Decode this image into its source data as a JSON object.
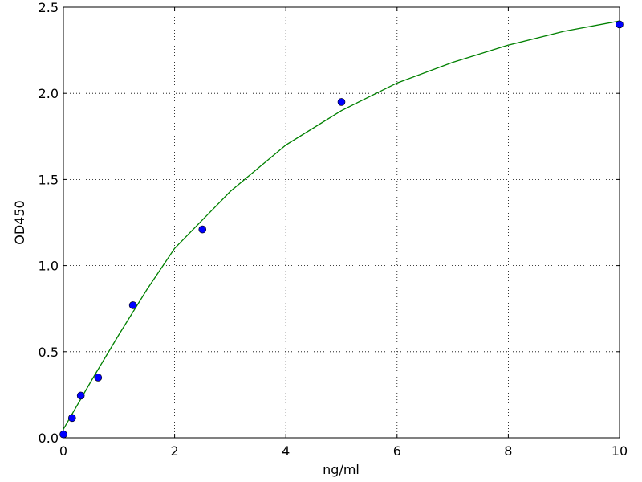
{
  "chart_data": {
    "type": "scatter",
    "xlabel": "ng/ml",
    "ylabel": "OD450",
    "xlim": [
      0,
      10
    ],
    "ylim": [
      0,
      2.5
    ],
    "xticks": [
      0,
      2,
      4,
      6,
      8,
      10
    ],
    "yticks": [
      {
        "value": 0,
        "label": "0.0"
      },
      {
        "value": 0.5,
        "label": "0.5"
      },
      {
        "value": 1,
        "label": "1.0"
      },
      {
        "value": 1.5,
        "label": "1.5"
      },
      {
        "value": 2,
        "label": "2.0"
      },
      {
        "value": 2.5,
        "label": "2.5"
      }
    ],
    "grid": true,
    "series": [
      {
        "type": "line",
        "color": "#008000",
        "x": [
          0,
          0.5,
          1,
          1.5,
          2,
          3,
          4,
          5,
          6,
          7,
          8,
          9,
          10
        ],
        "values": [
          0.05,
          0.33,
          0.6,
          0.86,
          1.1,
          1.43,
          1.7,
          1.9,
          2.06,
          2.18,
          2.28,
          2.36,
          2.42
        ]
      },
      {
        "type": "scatter",
        "color": "#0000ff",
        "x": [
          0,
          0.156,
          0.3125,
          0.625,
          1.25,
          2.5,
          5,
          10
        ],
        "values": [
          0.02,
          0.115,
          0.245,
          0.35,
          0.77,
          1.21,
          1.95,
          2.4
        ]
      }
    ]
  }
}
